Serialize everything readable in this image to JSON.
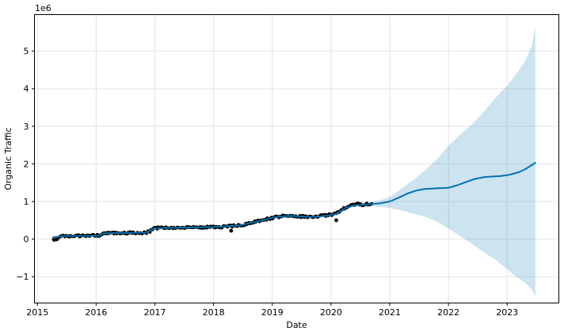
{
  "chart_data": {
    "type": "line",
    "title": "",
    "xlabel": "Date",
    "ylabel": "Organic Traffic",
    "offset_text": "1e6",
    "unit_multiplier": 1000000,
    "grid": true,
    "legend": "none",
    "x_ticks": [
      2015,
      2016,
      2017,
      2018,
      2019,
      2020,
      2021,
      2022,
      2023
    ],
    "y_ticks": [
      -1,
      0,
      1,
      2,
      3,
      4,
      5
    ],
    "xlim": [
      2014.95,
      2023.88
    ],
    "ylim": [
      -1.7,
      5.97
    ],
    "colors": {
      "observed": "#000000",
      "forecast_line": "#0072B2",
      "band_fill": "#0072B2",
      "band_opacity": 0.2,
      "grid": "#e4e4e4",
      "spine": "#000000",
      "text": "#000000"
    },
    "series": [
      {
        "name": "observed",
        "type": "scatter",
        "sample_step_years": 0.0192,
        "points": [
          [
            2015.27,
            -0.02
          ],
          [
            2015.33,
            0.01
          ],
          [
            2015.38,
            0.06
          ],
          [
            2015.5,
            0.085
          ],
          [
            2015.75,
            0.088
          ],
          [
            2016.0,
            0.09
          ],
          [
            2016.07,
            0.1
          ],
          [
            2016.12,
            0.16
          ],
          [
            2016.35,
            0.165
          ],
          [
            2016.6,
            0.165
          ],
          [
            2016.85,
            0.17
          ],
          [
            2016.92,
            0.21
          ],
          [
            2016.99,
            0.29
          ],
          [
            2017.15,
            0.3
          ],
          [
            2017.45,
            0.3
          ],
          [
            2017.75,
            0.31
          ],
          [
            2018.0,
            0.32
          ],
          [
            2018.2,
            0.33
          ],
          [
            2018.45,
            0.365
          ],
          [
            2018.56,
            0.4
          ],
          [
            2018.7,
            0.46
          ],
          [
            2018.83,
            0.51
          ],
          [
            2019.0,
            0.565
          ],
          [
            2019.12,
            0.6
          ],
          [
            2019.25,
            0.625
          ],
          [
            2019.38,
            0.615
          ],
          [
            2019.5,
            0.6
          ],
          [
            2019.62,
            0.585
          ],
          [
            2019.75,
            0.6
          ],
          [
            2019.92,
            0.63
          ],
          [
            2020.05,
            0.67
          ],
          [
            2020.19,
            0.78
          ],
          [
            2020.32,
            0.89
          ],
          [
            2020.45,
            0.93
          ],
          [
            2020.55,
            0.915
          ],
          [
            2020.63,
            0.93
          ],
          [
            2020.7,
            0.94
          ]
        ]
      },
      {
        "name": "outliers",
        "type": "scatter",
        "points": [
          [
            2018.3,
            0.22
          ],
          [
            2020.09,
            0.5
          ]
        ]
      },
      {
        "name": "forecast",
        "type": "line",
        "points": [
          [
            2015.27,
            0.05
          ],
          [
            2015.45,
            0.08
          ],
          [
            2016.05,
            0.09
          ],
          [
            2016.13,
            0.155
          ],
          [
            2016.85,
            0.17
          ],
          [
            2016.99,
            0.285
          ],
          [
            2017.3,
            0.3
          ],
          [
            2018.0,
            0.32
          ],
          [
            2018.45,
            0.365
          ],
          [
            2018.83,
            0.5
          ],
          [
            2019.0,
            0.565
          ],
          [
            2019.15,
            0.6
          ],
          [
            2019.3,
            0.615
          ],
          [
            2019.5,
            0.6
          ],
          [
            2019.65,
            0.585
          ],
          [
            2019.8,
            0.6
          ],
          [
            2019.95,
            0.625
          ],
          [
            2020.1,
            0.68
          ],
          [
            2020.25,
            0.83
          ],
          [
            2020.4,
            0.9
          ],
          [
            2020.55,
            0.915
          ],
          [
            2020.7,
            0.935
          ],
          [
            2020.85,
            0.955
          ],
          [
            2021.0,
            1.0
          ],
          [
            2021.15,
            1.1
          ],
          [
            2021.3,
            1.21
          ],
          [
            2021.45,
            1.29
          ],
          [
            2021.6,
            1.335
          ],
          [
            2021.8,
            1.35
          ],
          [
            2022.0,
            1.365
          ],
          [
            2022.15,
            1.43
          ],
          [
            2022.3,
            1.52
          ],
          [
            2022.45,
            1.6
          ],
          [
            2022.6,
            1.645
          ],
          [
            2022.75,
            1.665
          ],
          [
            2022.9,
            1.68
          ],
          [
            2023.05,
            1.715
          ],
          [
            2023.2,
            1.78
          ],
          [
            2023.32,
            1.87
          ],
          [
            2023.42,
            1.97
          ],
          [
            2023.48,
            2.03
          ]
        ]
      },
      {
        "name": "uncertainty_upper",
        "type": "band_edge",
        "points": [
          [
            2020.4,
            0.92
          ],
          [
            2020.55,
            0.945
          ],
          [
            2020.7,
            0.985
          ],
          [
            2020.85,
            1.04
          ],
          [
            2021.0,
            1.12
          ],
          [
            2021.15,
            1.28
          ],
          [
            2021.3,
            1.46
          ],
          [
            2021.45,
            1.63
          ],
          [
            2021.6,
            1.83
          ],
          [
            2021.8,
            2.12
          ],
          [
            2022.0,
            2.48
          ],
          [
            2022.2,
            2.78
          ],
          [
            2022.4,
            3.05
          ],
          [
            2022.6,
            3.38
          ],
          [
            2022.8,
            3.75
          ],
          [
            2023.0,
            4.08
          ],
          [
            2023.15,
            4.38
          ],
          [
            2023.3,
            4.72
          ],
          [
            2023.42,
            5.15
          ],
          [
            2023.48,
            5.65
          ]
        ]
      },
      {
        "name": "uncertainty_lower",
        "type": "band_edge",
        "points": [
          [
            2020.4,
            0.87
          ],
          [
            2020.55,
            0.875
          ],
          [
            2020.7,
            0.875
          ],
          [
            2020.85,
            0.86
          ],
          [
            2021.0,
            0.83
          ],
          [
            2021.15,
            0.78
          ],
          [
            2021.3,
            0.72
          ],
          [
            2021.45,
            0.66
          ],
          [
            2021.6,
            0.6
          ],
          [
            2021.8,
            0.47
          ],
          [
            2022.0,
            0.28
          ],
          [
            2022.2,
            0.08
          ],
          [
            2022.4,
            -0.13
          ],
          [
            2022.6,
            -0.35
          ],
          [
            2022.8,
            -0.55
          ],
          [
            2023.0,
            -0.8
          ],
          [
            2023.15,
            -1.0
          ],
          [
            2023.3,
            -1.15
          ],
          [
            2023.42,
            -1.35
          ],
          [
            2023.48,
            -1.52
          ]
        ]
      }
    ]
  }
}
